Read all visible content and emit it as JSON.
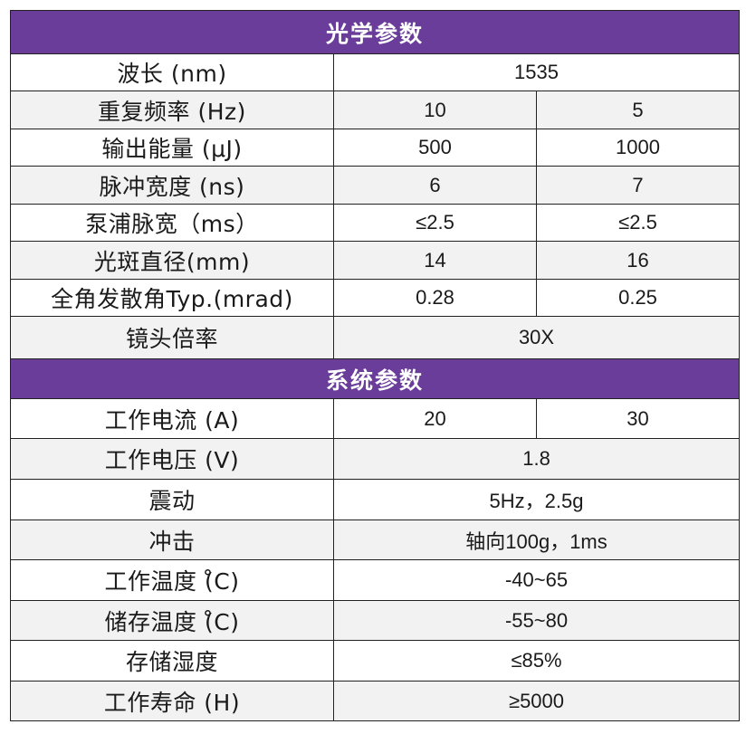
{
  "colors": {
    "header_bg": "#6a3d9a",
    "header_text": "#ffffff",
    "row_shaded": "#f2f2f2",
    "row_plain": "#ffffff",
    "border": "#222222"
  },
  "optical": {
    "title": "光学参数",
    "rows": [
      {
        "label": "波长 (nm)",
        "value": "1535"
      },
      {
        "label": "重复频率 (Hz)",
        "values": [
          "10",
          "5"
        ]
      },
      {
        "label": "输出能量 (μJ)",
        "values": [
          "500",
          "1000"
        ]
      },
      {
        "label": "脉冲宽度 (ns)",
        "values": [
          "6",
          "7"
        ]
      },
      {
        "label": "泵浦脉宽（ms）",
        "values": [
          "≤2.5",
          "≤2.5"
        ]
      },
      {
        "label": "光斑直径(mm)",
        "values": [
          "14",
          "16"
        ]
      },
      {
        "label": "全角发散角Typ.(mrad)",
        "values": [
          "0.28",
          "0.25"
        ]
      },
      {
        "label": "镜头倍率",
        "value": "30X"
      }
    ]
  },
  "system": {
    "title": "系统参数",
    "rows": [
      {
        "label": "工作电流 (A)",
        "values": [
          "20",
          "30"
        ]
      },
      {
        "label": "工作电压 (V)",
        "value": "1.8"
      },
      {
        "label": "震动",
        "value": "5Hz，2.5g"
      },
      {
        "label": "冲击",
        "value": "轴向100g，1ms"
      },
      {
        "label": "工作温度 (̊C)",
        "value": "-40~65"
      },
      {
        "label": "储存温度 (̊C)",
        "value": "-55~80"
      },
      {
        "label": "存储湿度",
        "value": "≤85%"
      },
      {
        "label": "工作寿命 (H)",
        "value": "≥5000"
      }
    ]
  }
}
